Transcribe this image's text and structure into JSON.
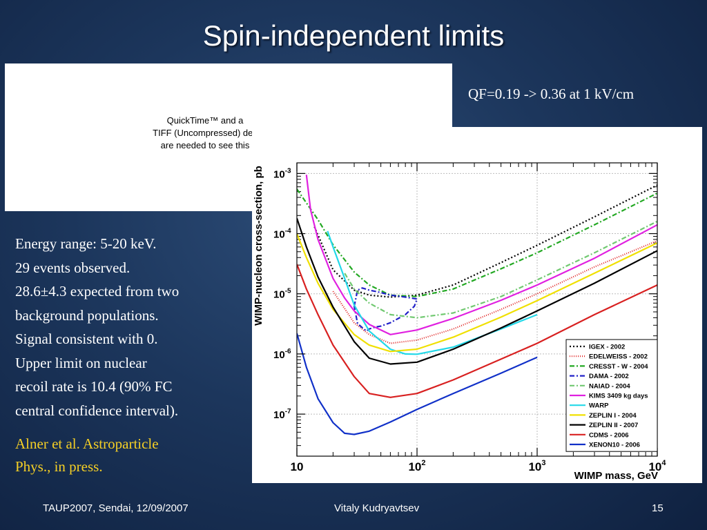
{
  "slide": {
    "title": "Spin-independent limits",
    "qf_note": "QF=0.19 -> 0.36 at 1 kV/cm",
    "placeholder": [
      "QuickTime™ and a",
      "TIFF (Uncompressed) dec",
      "are needed to see this"
    ],
    "body_lines": [
      "Energy range: 5-20 keV.",
      "29 events observed.",
      "28.6±4.3 expected from two",
      "background populations.",
      "Signal consistent with 0.",
      "Upper limit on nuclear",
      "recoil rate is 10.4 (90% FC",
      "central confidence interval)."
    ],
    "reference_lines": [
      "Alner et al. Astroparticle",
      "Phys., in press."
    ],
    "colors": {
      "background": "#1c365c",
      "text": "#ffffff",
      "reference": "#f5cf25"
    }
  },
  "footer": {
    "left": "TAUP2007, Sendai, 12/09/2007",
    "center": "Vitaly Kudryavtsev",
    "right": "15"
  },
  "chart_data": {
    "type": "line",
    "xlabel": "WIMP mass, GeV",
    "ylabel": "WIMP-nucleon cross-section, pb",
    "xscale": "log",
    "yscale": "log",
    "xlim": [
      10,
      10000
    ],
    "ylim": [
      2e-08,
      0.0015
    ],
    "grid": true,
    "legend_position": "bottom-right",
    "x_ticks": [
      {
        "value": 10,
        "label": "10",
        "exp": ""
      },
      {
        "value": 100,
        "label": "10",
        "exp": "2"
      },
      {
        "value": 1000,
        "label": "10",
        "exp": "3"
      },
      {
        "value": 10000,
        "label": "10",
        "exp": "4"
      }
    ],
    "y_ticks": [
      {
        "value": 1e-07,
        "label": "10",
        "exp": "-7"
      },
      {
        "value": 1e-06,
        "label": "10",
        "exp": "-6"
      },
      {
        "value": 1e-05,
        "label": "10",
        "exp": "-5"
      },
      {
        "value": 0.0001,
        "label": "10",
        "exp": "-4"
      },
      {
        "value": 0.001,
        "label": "10",
        "exp": "-3"
      }
    ],
    "series": [
      {
        "name": "IGEX - 2002",
        "color": "#000000",
        "dash": "2,3",
        "x": [
          14,
          20,
          30,
          40,
          60,
          100,
          200,
          500,
          1000,
          3000,
          10000
        ],
        "y": [
          0.00013,
          2.5e-05,
          1.15e-05,
          9.5e-06,
          8.8e-06,
          9.5e-06,
          1.4e-05,
          3.3e-05,
          6.4e-05,
          0.00019,
          0.00064
        ]
      },
      {
        "name": "EDELWEISS - 2002",
        "color": "#e02020",
        "dash": "1,2",
        "x": [
          20,
          30,
          40,
          60,
          100,
          200,
          500,
          1000,
          3000,
          10000
        ],
        "y": [
          1.1e-05,
          3.3e-06,
          2.1e-06,
          1.5e-06,
          1.7e-06,
          2.6e-06,
          5.5e-06,
          1e-05,
          2.8e-05,
          7.6e-05
        ]
      },
      {
        "name": "CRESST - W - 2004",
        "color": "#22a822",
        "dash": "7,3,2,3",
        "x": [
          10,
          15,
          20,
          30,
          40,
          60,
          100,
          200,
          500,
          1000,
          3000,
          10000
        ],
        "y": [
          0.00055,
          0.00017,
          6.5e-05,
          2.3e-05,
          1.4e-05,
          9.5e-06,
          9e-06,
          1.2e-05,
          2.6e-05,
          4.8e-05,
          0.00014,
          0.00047
        ]
      },
      {
        "name": "DAMA - 2002",
        "color": "#2020c8",
        "dash": "7,3,2,3",
        "x": [
          30,
          32,
          35,
          40,
          50,
          60,
          80,
          100,
          95,
          80,
          60,
          50,
          45,
          40,
          38,
          36,
          32,
          30
        ],
        "y": [
          6.2e-06,
          1.15e-05,
          1.25e-05,
          1.15e-05,
          1.05e-05,
          9.5e-06,
          8.8e-06,
          8.2e-06,
          6.2e-06,
          4.5e-06,
          3.3e-06,
          2.9e-06,
          2.8e-06,
          2.6e-06,
          2.4e-06,
          2.6e-06,
          3.2e-06,
          6.2e-06
        ]
      },
      {
        "name": "NAIAD - 2004",
        "color": "#70c870",
        "dash": "7,3,2,3",
        "x": [
          25,
          30,
          40,
          60,
          100,
          200,
          500,
          1000,
          3000,
          10000
        ],
        "y": [
          2.2e-05,
          1.2e-05,
          7e-06,
          4.5e-06,
          4e-06,
          4.8e-06,
          9e-06,
          1.7e-05,
          4.8e-05,
          0.00016
        ]
      },
      {
        "name": "KIMS 3409 kg days",
        "color": "#e020e0",
        "dash": "",
        "x": [
          12,
          13,
          15,
          20,
          25,
          30,
          40,
          60,
          100,
          200,
          500,
          1000,
          3000,
          10000
        ],
        "y": [
          0.00095,
          0.00025,
          8e-05,
          1.8e-05,
          8.5e-06,
          5.2e-06,
          3.1e-06,
          2.1e-06,
          2.5e-06,
          3.9e-06,
          7.8e-06,
          1.4e-05,
          3.9e-05,
          0.00014
        ]
      },
      {
        "name": "WARP",
        "color": "#22d8e8",
        "dash": "",
        "x": [
          18,
          20,
          25,
          30,
          40,
          60,
          80,
          100,
          200,
          500,
          1000
        ],
        "y": [
          0.00011,
          6e-05,
          1.8e-05,
          6.5e-06,
          2.4e-06,
          1.2e-06,
          1e-06,
          9.9e-07,
          1.3e-06,
          2.6e-06,
          4.5e-06
        ]
      },
      {
        "name": "ZEPLIN I - 2004",
        "color": "#f0e000",
        "dash": "",
        "x": [
          10,
          12,
          15,
          20,
          30,
          40,
          60,
          100,
          200,
          500,
          1000,
          3000,
          10000
        ],
        "y": [
          0.0001,
          4e-05,
          1.5e-05,
          5.5e-06,
          2.1e-06,
          1.4e-06,
          1.1e-06,
          1.2e-06,
          1.9e-06,
          4.1e-06,
          7.7e-06,
          2.2e-05,
          7e-05
        ]
      },
      {
        "name": "ZEPLIN II - 2007",
        "color": "#000000",
        "dash": "",
        "x": [
          10,
          12,
          15,
          20,
          30,
          40,
          60,
          100,
          200,
          500,
          1000,
          3000,
          10000
        ],
        "y": [
          0.00018,
          6e-05,
          1.9e-05,
          6e-06,
          1.6e-06,
          8.5e-07,
          6.8e-07,
          7.3e-07,
          1.2e-06,
          2.7e-06,
          5.2e-06,
          1.5e-05,
          5.2e-05
        ]
      },
      {
        "name": "CDMS - 2006",
        "color": "#d82020",
        "dash": "",
        "x": [
          10,
          12,
          15,
          20,
          30,
          40,
          60,
          100,
          200,
          500,
          1000,
          3000,
          10000
        ],
        "y": [
          3.1e-05,
          1.2e-05,
          4.5e-06,
          1.4e-06,
          4.2e-07,
          2.2e-07,
          1.9e-07,
          2.2e-07,
          3.7e-07,
          8.2e-07,
          1.5e-06,
          4.5e-06,
          1.4e-05
        ]
      },
      {
        "name": "XENON10 - 2006",
        "color": "#1030c8",
        "dash": "",
        "x": [
          10,
          12,
          15,
          20,
          25,
          30,
          40,
          60,
          100,
          200,
          500,
          1000
        ],
        "y": [
          2.2e-06,
          6e-07,
          1.8e-07,
          7.2e-08,
          4.8e-08,
          4.6e-08,
          5.2e-08,
          7.4e-08,
          1.2e-07,
          2.2e-07,
          4.8e-07,
          8.8e-07
        ]
      }
    ]
  }
}
